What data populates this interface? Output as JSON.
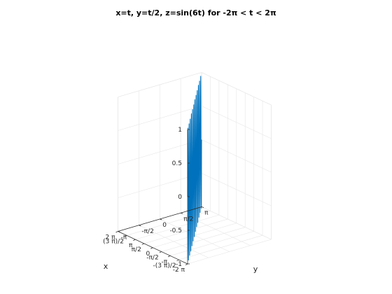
{
  "chart_data": {
    "type": "line",
    "subtype": "3d-parametric",
    "title": "x=t, y=t/2, z=sin(6t) for -2π < t < 2π",
    "xlabel": "x",
    "ylabel": "y",
    "zlabel": "",
    "parameter": "t",
    "t_range": [
      -6.2832,
      6.2832
    ],
    "x_expr": "t",
    "y_expr": "t/2",
    "z_expr": "sin(6t)",
    "xlim": [
      -6.2832,
      6.2832
    ],
    "ylim": [
      -3.1416,
      3.1416
    ],
    "zlim": [
      -1,
      1
    ],
    "x_ticks": [
      {
        "value": -6.2832,
        "label": "-2 π"
      },
      {
        "value": -4.7124,
        "label": "-(3 π)/2"
      },
      {
        "value": -3.1416,
        "label": "-π"
      },
      {
        "value": -1.5708,
        "label": "-π/2"
      },
      {
        "value": 0,
        "label": "0"
      },
      {
        "value": 1.5708,
        "label": "π/2"
      },
      {
        "value": 3.1416,
        "label": "π"
      },
      {
        "value": 4.7124,
        "label": "(3 π)/2"
      },
      {
        "value": 6.2832,
        "label": "2 π"
      }
    ],
    "y_ticks": [
      {
        "value": -3.1416,
        "label": "-π"
      },
      {
        "value": -1.5708,
        "label": "-π/2"
      },
      {
        "value": 0,
        "label": "0"
      },
      {
        "value": 1.5708,
        "label": "π/2"
      },
      {
        "value": 3.1416,
        "label": "π"
      }
    ],
    "z_ticks": [
      {
        "value": 1,
        "label": "1"
      },
      {
        "value": 0.5,
        "label": "0.5"
      },
      {
        "value": 0,
        "label": "0"
      },
      {
        "value": -0.5,
        "label": "-0.5"
      },
      {
        "value": -1,
        "label": "-1"
      }
    ],
    "grid": true,
    "line_color": "#0072bd",
    "view": "3d-default"
  }
}
